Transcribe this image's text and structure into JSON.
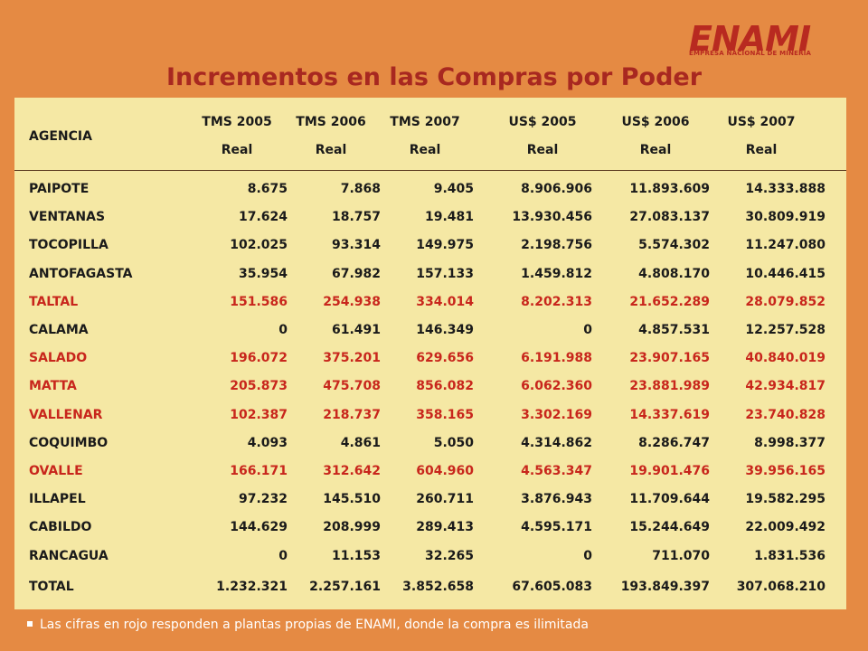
{
  "logo": {
    "name": "ENAMI",
    "subtitle": "EMPRESA NACIONAL DE MINERIA"
  },
  "title": "Incrementos en las Compras por Poder",
  "colors": {
    "background": "#e58a43",
    "panel": "#f5e8a4",
    "title": "#a82820",
    "highlight": "#c8261c"
  },
  "table": {
    "agency_header": "AGENCIA",
    "columns": [
      {
        "line1": "TMS 2005",
        "line2": "Real"
      },
      {
        "line1": "TMS 2006",
        "line2": "Real"
      },
      {
        "line1": "TMS 2007",
        "line2": "Real"
      },
      {
        "line1": "US$ 2005",
        "line2": "Real"
      },
      {
        "line1": "US$ 2006",
        "line2": "Real"
      },
      {
        "line1": "US$ 2007",
        "line2": "Real"
      }
    ],
    "rows": [
      {
        "agency": "PAIPOTE",
        "own_plant": false,
        "values": [
          "8.675",
          "7.868",
          "9.405",
          "8.906.906",
          "11.893.609",
          "14.333.888"
        ]
      },
      {
        "agency": "VENTANAS",
        "own_plant": false,
        "values": [
          "17.624",
          "18.757",
          "19.481",
          "13.930.456",
          "27.083.137",
          "30.809.919"
        ]
      },
      {
        "agency": "TOCOPILLA",
        "own_plant": false,
        "values": [
          "102.025",
          "93.314",
          "149.975",
          "2.198.756",
          "5.574.302",
          "11.247.080"
        ]
      },
      {
        "agency": "ANTOFAGASTA",
        "own_plant": false,
        "values": [
          "35.954",
          "67.982",
          "157.133",
          "1.459.812",
          "4.808.170",
          "10.446.415"
        ]
      },
      {
        "agency": "TALTAL",
        "own_plant": true,
        "values": [
          "151.586",
          "254.938",
          "334.014",
          "8.202.313",
          "21.652.289",
          "28.079.852"
        ]
      },
      {
        "agency": "CALAMA",
        "own_plant": false,
        "values": [
          "0",
          "61.491",
          "146.349",
          "0",
          "4.857.531",
          "12.257.528"
        ]
      },
      {
        "agency": "SALADO",
        "own_plant": true,
        "values": [
          "196.072",
          "375.201",
          "629.656",
          "6.191.988",
          "23.907.165",
          "40.840.019"
        ]
      },
      {
        "agency": "MATTA",
        "own_plant": true,
        "values": [
          "205.873",
          "475.708",
          "856.082",
          "6.062.360",
          "23.881.989",
          "42.934.817"
        ]
      },
      {
        "agency": "VALLENAR",
        "own_plant": true,
        "values": [
          "102.387",
          "218.737",
          "358.165",
          "3.302.169",
          "14.337.619",
          "23.740.828"
        ]
      },
      {
        "agency": "COQUIMBO",
        "own_plant": false,
        "values": [
          "4.093",
          "4.861",
          "5.050",
          "4.314.862",
          "8.286.747",
          "8.998.377"
        ]
      },
      {
        "agency": "OVALLE",
        "own_plant": true,
        "values": [
          "166.171",
          "312.642",
          "604.960",
          "4.563.347",
          "19.901.476",
          "39.956.165"
        ]
      },
      {
        "agency": "ILLAPEL",
        "own_plant": false,
        "values": [
          "97.232",
          "145.510",
          "260.711",
          "3.876.943",
          "11.709.644",
          "19.582.295"
        ]
      },
      {
        "agency": "CABILDO",
        "own_plant": false,
        "values": [
          "144.629",
          "208.999",
          "289.413",
          "4.595.171",
          "15.244.649",
          "22.009.492"
        ]
      },
      {
        "agency": "RANCAGUA",
        "own_plant": false,
        "values": [
          "0",
          "11.153",
          "32.265",
          "0",
          "711.070",
          "1.831.536"
        ]
      }
    ],
    "total": {
      "label": "TOTAL",
      "values": [
        "1.232.321",
        "2.257.161",
        "3.852.658",
        "67.605.083",
        "193.849.397",
        "307.068.210"
      ]
    }
  },
  "footnote": "Las cifras en rojo responden a plantas propias de ENAMI, donde la compra es ilimitada"
}
